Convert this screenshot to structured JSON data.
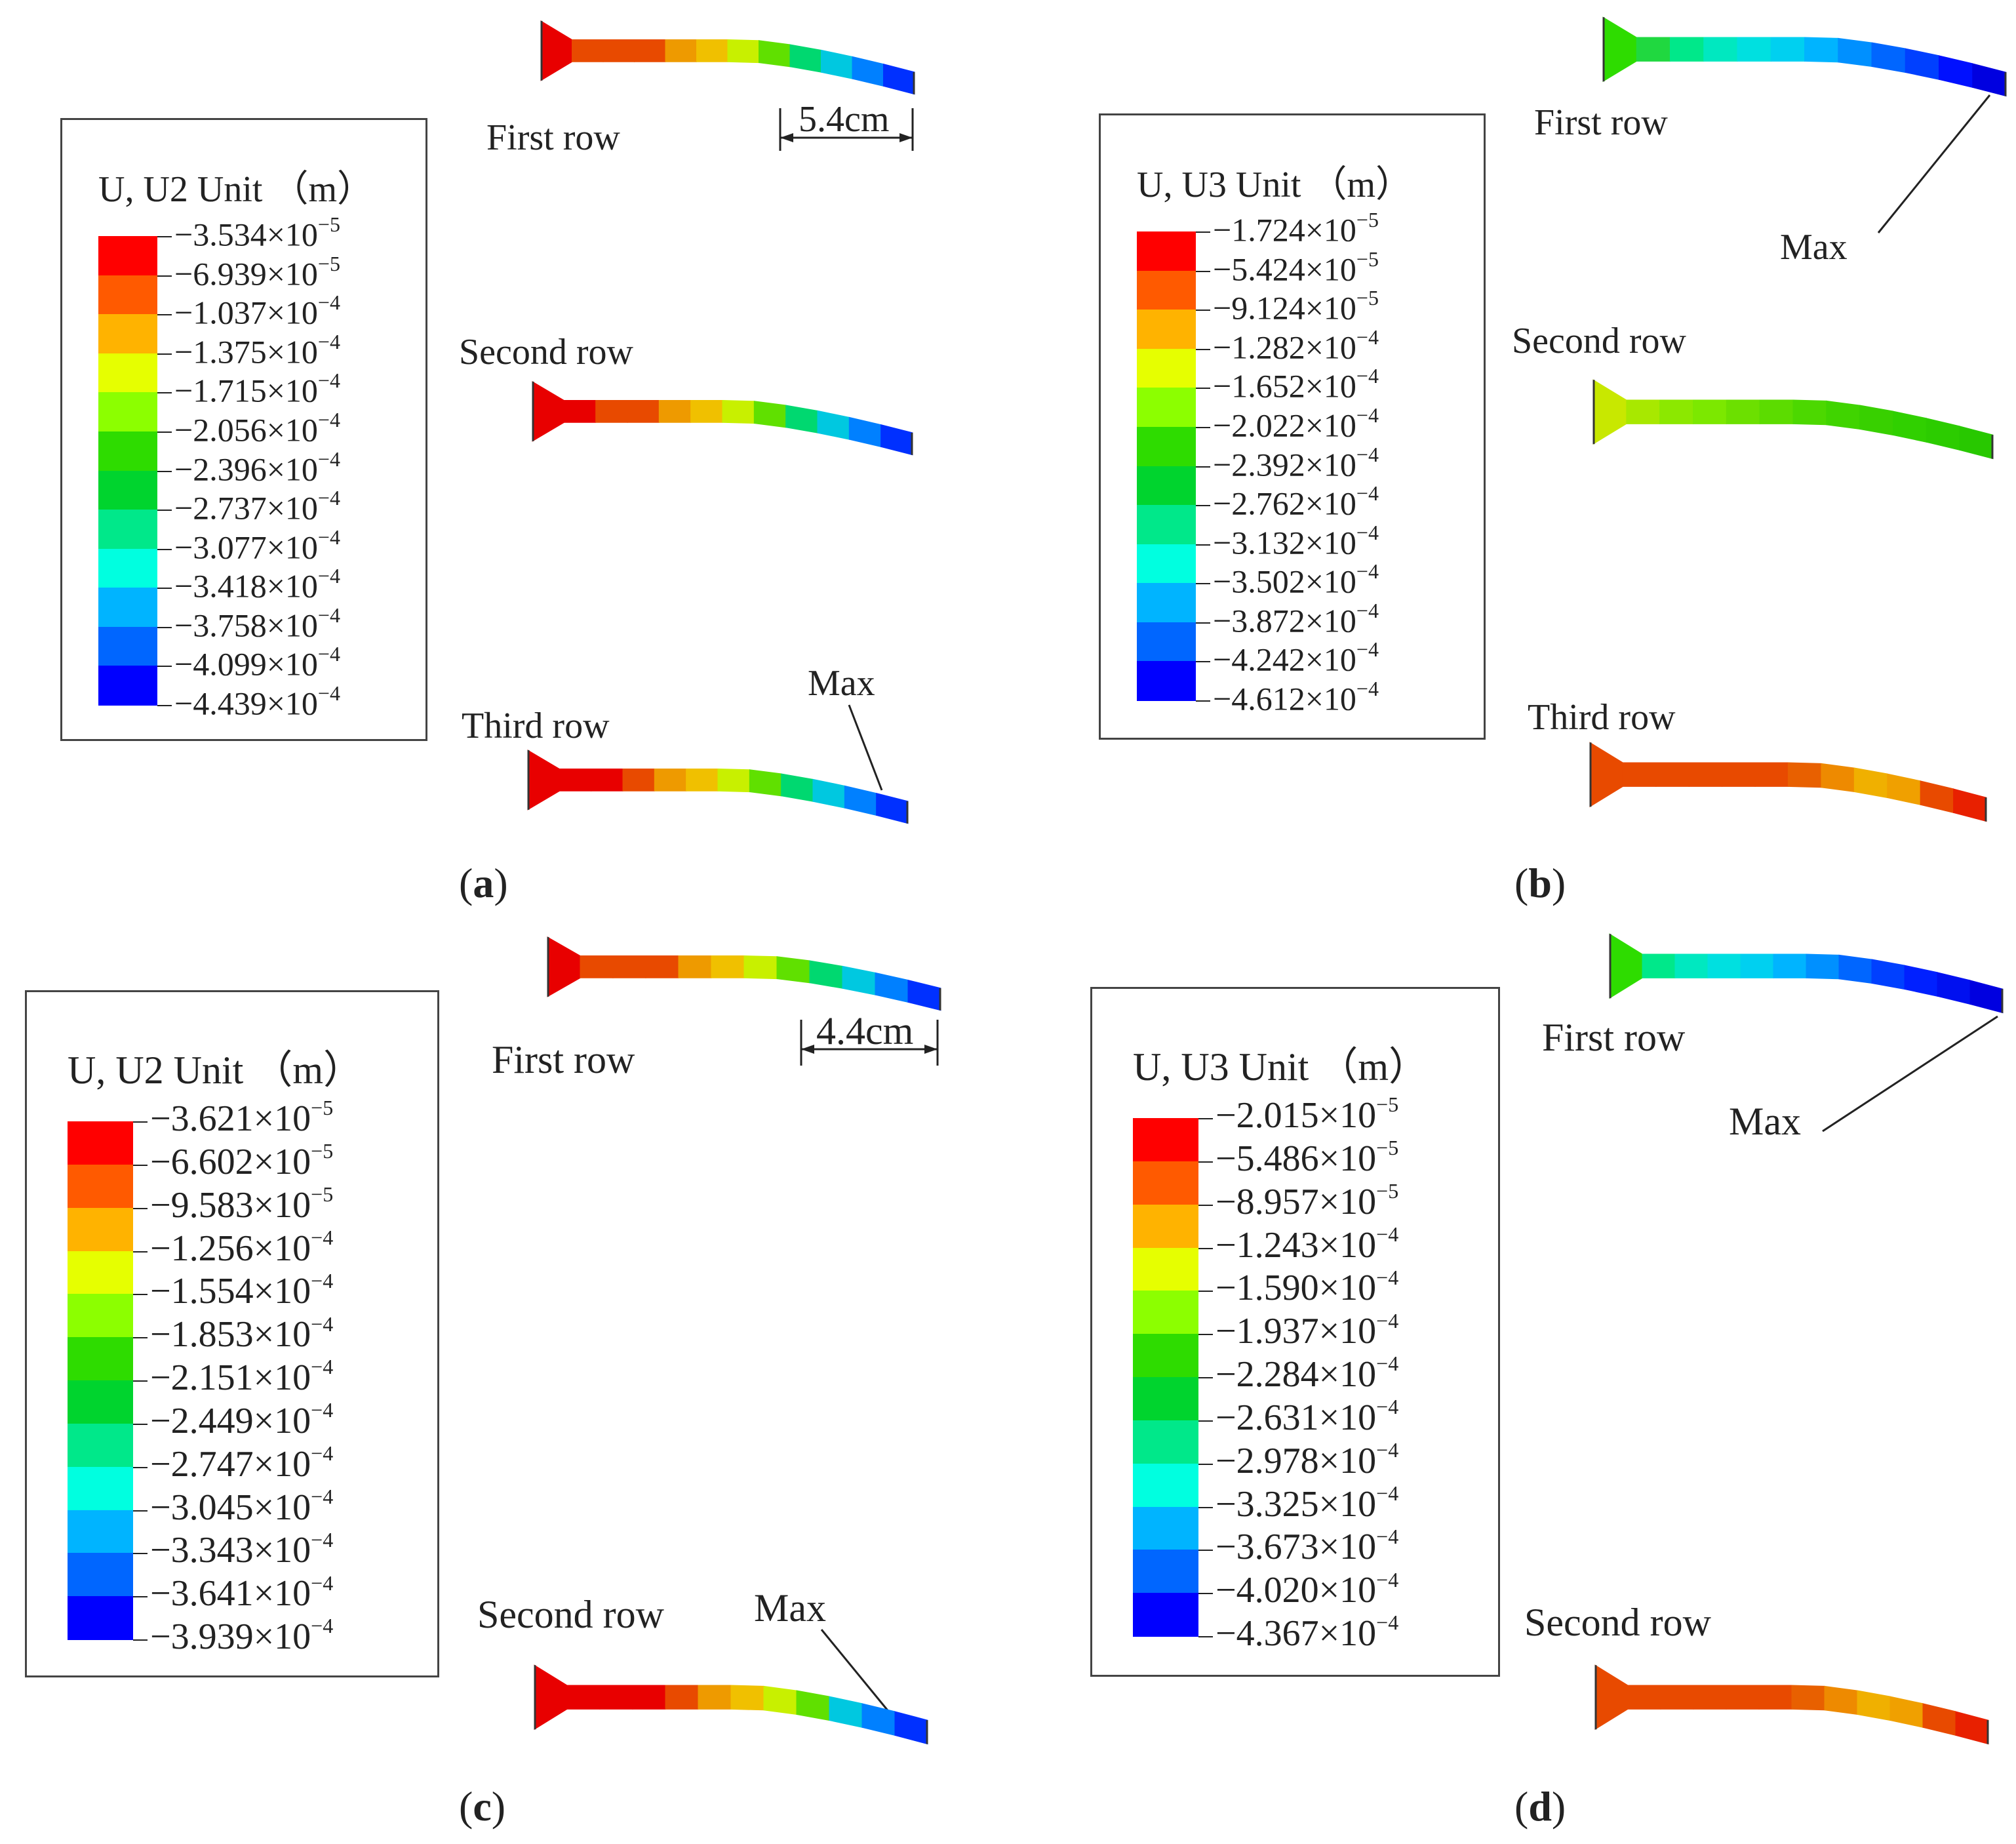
{
  "colors": [
    "#ff0000",
    "#ff5a00",
    "#ffb300",
    "#e6ff00",
    "#8cff00",
    "#2edc00",
    "#00d42e",
    "#00e88a",
    "#00ffe0",
    "#00b4ff",
    "#0066ff",
    "#0000ff"
  ],
  "panels": {
    "a": {
      "caption": "a",
      "legend_title": "U, U2 Unit （m）",
      "legend_values": [
        {
          "mant": "−3.534",
          "exp": "−5"
        },
        {
          "mant": "−6.939",
          "exp": "−5"
        },
        {
          "mant": "−1.037",
          "exp": "−4"
        },
        {
          "mant": "−1.375",
          "exp": "−4"
        },
        {
          "mant": "−1.715",
          "exp": "−4"
        },
        {
          "mant": "−2.056",
          "exp": "−4"
        },
        {
          "mant": "−2.396",
          "exp": "−4"
        },
        {
          "mant": "−2.737",
          "exp": "−4"
        },
        {
          "mant": "−3.077",
          "exp": "−4"
        },
        {
          "mant": "−3.418",
          "exp": "−4"
        },
        {
          "mant": "−3.758",
          "exp": "−4"
        },
        {
          "mant": "−4.099",
          "exp": "−4"
        },
        {
          "mant": "−4.439",
          "exp": "−4"
        }
      ],
      "rows": [
        "First row",
        "Second row",
        "Third row"
      ],
      "dimension": "5.4cm",
      "max_label": "Max"
    },
    "b": {
      "caption": "b",
      "legend_title": "U, U3 Unit （m）",
      "legend_values": [
        {
          "mant": "−1.724",
          "exp": "−5"
        },
        {
          "mant": "−5.424",
          "exp": "−5"
        },
        {
          "mant": "−9.124",
          "exp": "−5"
        },
        {
          "mant": "−1.282",
          "exp": "−4"
        },
        {
          "mant": "−1.652",
          "exp": "−4"
        },
        {
          "mant": "−2.022",
          "exp": "−4"
        },
        {
          "mant": "−2.392",
          "exp": "−4"
        },
        {
          "mant": "−2.762",
          "exp": "−4"
        },
        {
          "mant": "−3.132",
          "exp": "−4"
        },
        {
          "mant": "−3.502",
          "exp": "−4"
        },
        {
          "mant": "−3.872",
          "exp": "−4"
        },
        {
          "mant": "−4.242",
          "exp": "−4"
        },
        {
          "mant": "−4.612",
          "exp": "−4"
        }
      ],
      "rows": [
        "First row",
        "Second row",
        "Third row"
      ],
      "max_label": "Max"
    },
    "c": {
      "caption": "c",
      "legend_title": "U, U2 Unit （m）",
      "legend_values": [
        {
          "mant": "−3.621",
          "exp": "−5"
        },
        {
          "mant": "−6.602",
          "exp": "−5"
        },
        {
          "mant": "−9.583",
          "exp": "−5"
        },
        {
          "mant": "−1.256",
          "exp": "−4"
        },
        {
          "mant": "−1.554",
          "exp": "−4"
        },
        {
          "mant": "−1.853",
          "exp": "−4"
        },
        {
          "mant": "−2.151",
          "exp": "−4"
        },
        {
          "mant": "−2.449",
          "exp": "−4"
        },
        {
          "mant": "−2.747",
          "exp": "−4"
        },
        {
          "mant": "−3.045",
          "exp": "−4"
        },
        {
          "mant": "−3.343",
          "exp": "−4"
        },
        {
          "mant": "−3.641",
          "exp": "−4"
        },
        {
          "mant": "−3.939",
          "exp": "−4"
        }
      ],
      "rows": [
        "First row",
        "Second row"
      ],
      "dimension": "4.4cm",
      "max_label": "Max"
    },
    "d": {
      "caption": "d",
      "legend_title": "U, U3 Unit （m）",
      "legend_values": [
        {
          "mant": "−2.015",
          "exp": "−5"
        },
        {
          "mant": "−5.486",
          "exp": "−5"
        },
        {
          "mant": "−8.957",
          "exp": "−5"
        },
        {
          "mant": "−1.243",
          "exp": "−4"
        },
        {
          "mant": "−1.590",
          "exp": "−4"
        },
        {
          "mant": "−1.937",
          "exp": "−4"
        },
        {
          "mant": "−2.284",
          "exp": "−4"
        },
        {
          "mant": "−2.631",
          "exp": "−4"
        },
        {
          "mant": "−2.978",
          "exp": "−4"
        },
        {
          "mant": "−3.325",
          "exp": "−4"
        },
        {
          "mant": "−3.673",
          "exp": "−4"
        },
        {
          "mant": "−4.020",
          "exp": "−4"
        },
        {
          "mant": "−4.367",
          "exp": "−4"
        }
      ],
      "rows": [
        "First row",
        "Second row"
      ],
      "max_label": "Max"
    }
  }
}
